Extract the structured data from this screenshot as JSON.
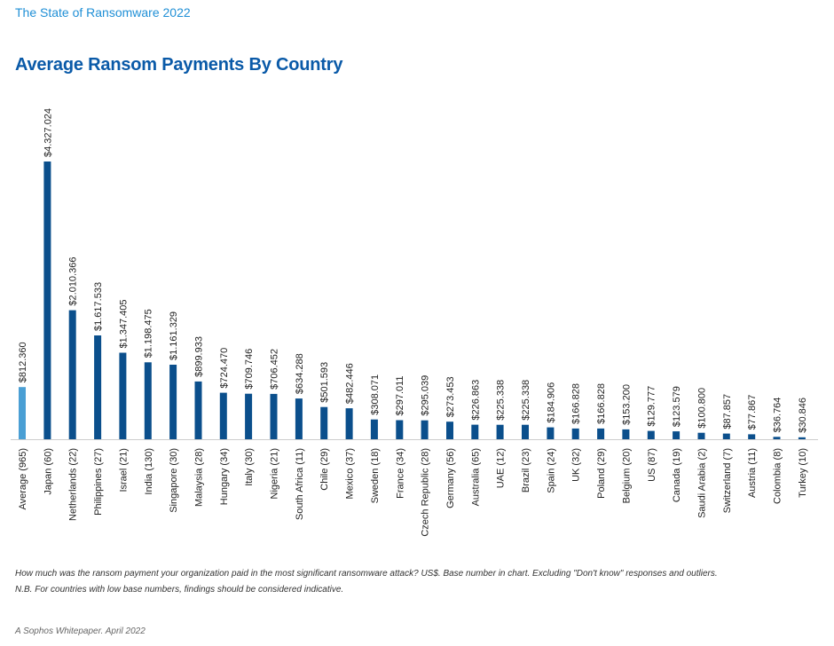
{
  "header": {
    "report_title": "The State of Ransomware 2022"
  },
  "chart_data": {
    "type": "bar",
    "title": "Average Ransom Payments By Country",
    "categories": [
      "Average (965)",
      "Japan (60)",
      "Netherlands (22)",
      "Philippines (27)",
      "Israel (21)",
      "India (130)",
      "Singapore (30)",
      "Malaysia (28)",
      "Hungary (34)",
      "Italy (30)",
      "Nigeria (21)",
      "South Africa (11)",
      "Chile (29)",
      "Mexico (37)",
      "Sweden (18)",
      "France (34)",
      "Czech Republic (28)",
      "Germany (56)",
      "Australia (65)",
      "UAE (12)",
      "Brazil (23)",
      "Spain (24)",
      "UK (32)",
      "Poland (29)",
      "Belgium (20)",
      "US (87)",
      "Canada (19)",
      "Saudi Arabia (2)",
      "Switzerland (7)",
      "Austria (11)",
      "Colombia (8)",
      "Turkey (10)"
    ],
    "values": [
      812360,
      4327024,
      2010366,
      1617533,
      1347405,
      1198475,
      1161329,
      899933,
      724470,
      709746,
      706452,
      634288,
      501593,
      482446,
      308071,
      297011,
      295039,
      273453,
      226863,
      225338,
      225338,
      184906,
      166828,
      166828,
      153200,
      129777,
      123579,
      100800,
      87857,
      77867,
      36764,
      30846
    ],
    "value_labels": [
      "$812.360",
      "$4.327.024",
      "$2.010.366",
      "$1.617.533",
      "$1.347.405",
      "$1.198.475",
      "$1.161.329",
      "$899.933",
      "$724.470",
      "$709.746",
      "$706.452",
      "$634.288",
      "$501.593",
      "$482.446",
      "$308.071",
      "$297.011",
      "$295.039",
      "$273.453",
      "$226.863",
      "$225.338",
      "$225.338",
      "$184.906",
      "$166.828",
      "$166.828",
      "$153.200",
      "$129.777",
      "$123.579",
      "$100.800",
      "$87.857",
      "$77.867",
      "$36.764",
      "$30.846"
    ],
    "highlight_index": 0,
    "colors": {
      "highlight": "#4a9fd4",
      "bar": "#0b4f8c",
      "axis": "#cccccc",
      "text": "#222222"
    },
    "ylim": [
      0,
      4327024
    ],
    "grid": false
  },
  "notes": {
    "question": "How much was the ransom payment your organization paid in the most significant ransomware attack? US$. Base number in chart. Excluding \"Don't know\" responses and outliers.",
    "nb": "N.B. For countries with low base numbers, findings should be considered indicative."
  },
  "footer": {
    "source": "A Sophos Whitepaper. April 2022"
  }
}
